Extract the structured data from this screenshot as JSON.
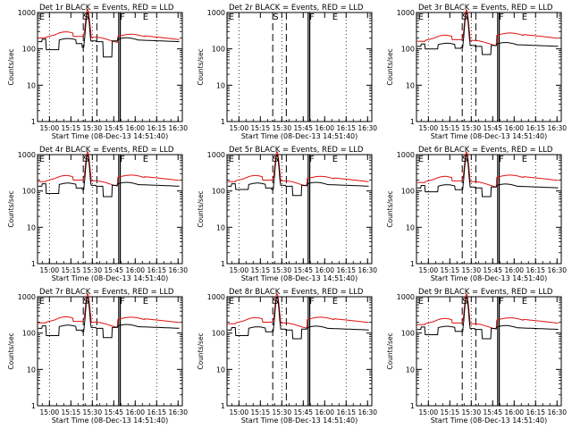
{
  "figure": {
    "xlabel": "Start Time (08-Dec-13 14:51:40)",
    "ylabel": "Counts/sec",
    "xticks": [
      "15:00",
      "15:15",
      "15:30",
      "15:45",
      "16:00",
      "16:15",
      "16:30"
    ],
    "yticks": [
      "1",
      "10",
      "100",
      "1000"
    ],
    "colors": {
      "events": "#000000",
      "lld": "#e01010",
      "frame": "#000000"
    }
  },
  "chart_data": [
    {
      "type": "line",
      "title": "Det 1r BLACK = Events, RED = LLD",
      "detector": "1r",
      "has_data": true,
      "dip_level": [
        175,
        95,
        95,
        60
      ],
      "red_level": [
        210,
        240
      ],
      "ylim": [
        1,
        1000
      ],
      "xlim": [
        "14:51:40",
        "16:33"
      ],
      "yscale": "log",
      "markers": [
        "E",
        "S",
        "F",
        "E"
      ],
      "series": [
        {
          "name": "Events",
          "color": "#000000"
        },
        {
          "name": "LLD",
          "color": "#e01010"
        }
      ]
    },
    {
      "type": "line",
      "title": "Det 2r BLACK = Events, RED = LLD",
      "detector": "2r",
      "has_data": false,
      "ylim": [
        1,
        1000
      ],
      "xlim": [
        "14:51:40",
        "16:33"
      ],
      "yscale": "log",
      "markers": [
        "E",
        "S",
        "F",
        "E"
      ],
      "series": []
    },
    {
      "type": "line",
      "title": "Det 3r BLACK = Events, RED = LLD",
      "detector": "3r",
      "has_data": true,
      "dip_level": [
        130,
        100,
        100,
        70
      ],
      "red_level": [
        170,
        260
      ],
      "ylim": [
        1,
        1000
      ],
      "xlim": [
        "14:51:40",
        "16:33"
      ],
      "yscale": "log",
      "markers": [
        "E",
        "S",
        "F",
        "E"
      ],
      "series": [
        {
          "name": "Events",
          "color": "#000000"
        },
        {
          "name": "LLD",
          "color": "#e01010"
        }
      ]
    },
    {
      "type": "line",
      "title": "Det 4r BLACK = Events, RED = LLD",
      "detector": "4r",
      "has_data": true,
      "dip_level": [
        150,
        85,
        85,
        70
      ],
      "red_level": [
        190,
        260
      ],
      "ylim": [
        1,
        1000
      ],
      "xlim": [
        "14:51:40",
        "16:33"
      ],
      "yscale": "log",
      "markers": [
        "E",
        "S",
        "F",
        "E"
      ],
      "series": [
        {
          "name": "Events",
          "color": "#000000"
        },
        {
          "name": "LLD",
          "color": "#e01010"
        }
      ]
    },
    {
      "type": "line",
      "title": "Det 5r BLACK = Events, RED = LLD",
      "detector": "5r",
      "has_data": true,
      "dip_level": [
        150,
        110,
        110,
        75
      ],
      "red_level": [
        190,
        240
      ],
      "ylim": [
        1,
        1000
      ],
      "xlim": [
        "14:51:40",
        "16:33"
      ],
      "yscale": "log",
      "markers": [
        "E",
        "S",
        "F",
        "E"
      ],
      "series": [
        {
          "name": "Events",
          "color": "#000000"
        },
        {
          "name": "LLD",
          "color": "#e01010"
        }
      ]
    },
    {
      "type": "line",
      "title": "Det 6r BLACK = Events, RED = LLD",
      "detector": "6r",
      "has_data": true,
      "dip_level": [
        135,
        95,
        95,
        70
      ],
      "red_level": [
        180,
        260
      ],
      "ylim": [
        1,
        1000
      ],
      "xlim": [
        "14:51:40",
        "16:33"
      ],
      "yscale": "log",
      "markers": [
        "E",
        "S",
        "F",
        "E"
      ],
      "series": [
        {
          "name": "Events",
          "color": "#000000"
        },
        {
          "name": "LLD",
          "color": "#e01010"
        }
      ]
    },
    {
      "type": "line",
      "title": "Det 7r BLACK = Events, RED = LLD",
      "detector": "7r",
      "has_data": true,
      "dip_level": [
        150,
        85,
        85,
        75
      ],
      "red_level": [
        200,
        260
      ],
      "ylim": [
        1,
        1000
      ],
      "xlim": [
        "14:51:40",
        "16:33"
      ],
      "yscale": "log",
      "markers": [
        "E",
        "S",
        "F",
        "E"
      ],
      "series": [
        {
          "name": "Events",
          "color": "#000000"
        },
        {
          "name": "LLD",
          "color": "#e01010"
        }
      ]
    },
    {
      "type": "line",
      "title": "Det 8r BLACK = Events, RED = LLD",
      "detector": "8r",
      "has_data": true,
      "dip_level": [
        135,
        85,
        85,
        70
      ],
      "red_level": [
        190,
        260
      ],
      "ylim": [
        1,
        1000
      ],
      "xlim": [
        "14:51:40",
        "16:33"
      ],
      "yscale": "log",
      "markers": [
        "E",
        "S",
        "F",
        "E"
      ],
      "series": [
        {
          "name": "Events",
          "color": "#000000"
        },
        {
          "name": "LLD",
          "color": "#e01010"
        }
      ]
    },
    {
      "type": "line",
      "title": "Det 9r BLACK = Events, RED = LLD",
      "detector": "9r",
      "has_data": true,
      "dip_level": [
        140,
        90,
        90,
        70
      ],
      "red_level": [
        180,
        250
      ],
      "ylim": [
        1,
        1000
      ],
      "xlim": [
        "14:51:40",
        "16:33"
      ],
      "yscale": "log",
      "markers": [
        "E",
        "S",
        "F",
        "E"
      ],
      "series": [
        {
          "name": "Events",
          "color": "#000000"
        },
        {
          "name": "LLD",
          "color": "#e01010"
        }
      ]
    }
  ]
}
